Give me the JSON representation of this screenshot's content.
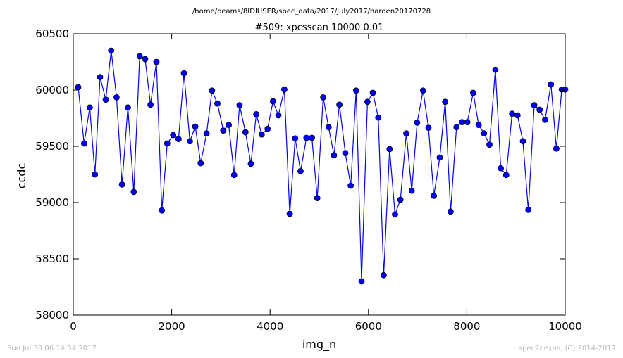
{
  "figure": {
    "suptitle": "/home/beams/8IDIUSER/spec_data/2017/July2017/harden20170728",
    "footer_left": "Sun Jul 30 06:14:54 2017",
    "footer_right": "spec2nexus, (C) 2014-2017"
  },
  "colors": {
    "line": "#0000ff",
    "marker_fill": "#0000ff",
    "marker_edge": "#000000",
    "axes": "#000000",
    "background": "#ffffff",
    "footer_text": "#bbbbbb"
  },
  "chart_data": {
    "type": "line",
    "title": "#509: xpcsscan 10000 0.01",
    "xlabel": "img_n",
    "ylabel": "ccdc",
    "xlim": [
      0,
      10000
    ],
    "ylim": [
      58000,
      60500
    ],
    "xticks": [
      0,
      2000,
      4000,
      6000,
      8000,
      10000
    ],
    "xtick_labels": [
      "0",
      "2000",
      "4000",
      "6000",
      "8000",
      "10000"
    ],
    "yticks": [
      58000,
      58500,
      59000,
      59500,
      60000,
      60500
    ],
    "ytick_labels": [
      "58000",
      "58500",
      "59000",
      "59500",
      "60000",
      "60500"
    ],
    "grid": false,
    "legend": "none",
    "marker": "circle",
    "series": [
      {
        "x": [
          100,
          220,
          335,
          440,
          545,
          660,
          770,
          880,
          990,
          1110,
          1230,
          1350,
          1460,
          1570,
          1690,
          1800,
          1910,
          2030,
          2140,
          2250,
          2370,
          2480,
          2590,
          2710,
          2820,
          2930,
          3050,
          3160,
          3270,
          3380,
          3500,
          3610,
          3720,
          3830,
          3950,
          4060,
          4170,
          4290,
          4400,
          4510,
          4620,
          4740,
          4850,
          4960,
          5080,
          5190,
          5300,
          5410,
          5530,
          5640,
          5750,
          5860,
          5980,
          6090,
          6200,
          6310,
          6430,
          6540,
          6650,
          6770,
          6880,
          6990,
          7110,
          7220,
          7330,
          7450,
          7560,
          7670,
          7790,
          7900,
          8010,
          8130,
          8240,
          8350,
          8460,
          8580,
          8690,
          8800,
          8920,
          9030,
          9140,
          9250,
          9370,
          9480,
          9590,
          9710,
          9820,
          9930,
          10000
        ],
        "y": [
          60025,
          59525,
          59845,
          59250,
          60115,
          59915,
          60350,
          59935,
          59160,
          59845,
          59095,
          60300,
          60275,
          59870,
          60250,
          58930,
          59525,
          59600,
          59565,
          60150,
          59545,
          59675,
          59350,
          59615,
          59995,
          59880,
          59640,
          59690,
          59245,
          59865,
          59625,
          59345,
          59785,
          59605,
          59655,
          59900,
          59775,
          60005,
          58900,
          59570,
          59280,
          59575,
          59575,
          59040,
          59935,
          59670,
          59420,
          59870,
          59440,
          59150,
          59995,
          58300,
          59895,
          59975,
          59755,
          58355,
          59475,
          58895,
          59025,
          59615,
          59105,
          59710,
          59995,
          59665,
          59060,
          59400,
          59895,
          58920,
          59670,
          59715,
          59715,
          59975,
          59690,
          59615,
          59515,
          60180,
          59305,
          59245,
          59790,
          59775,
          59545,
          58935,
          59865,
          59825,
          59735,
          60050,
          59480,
          60005,
          60005
        ]
      }
    ]
  }
}
